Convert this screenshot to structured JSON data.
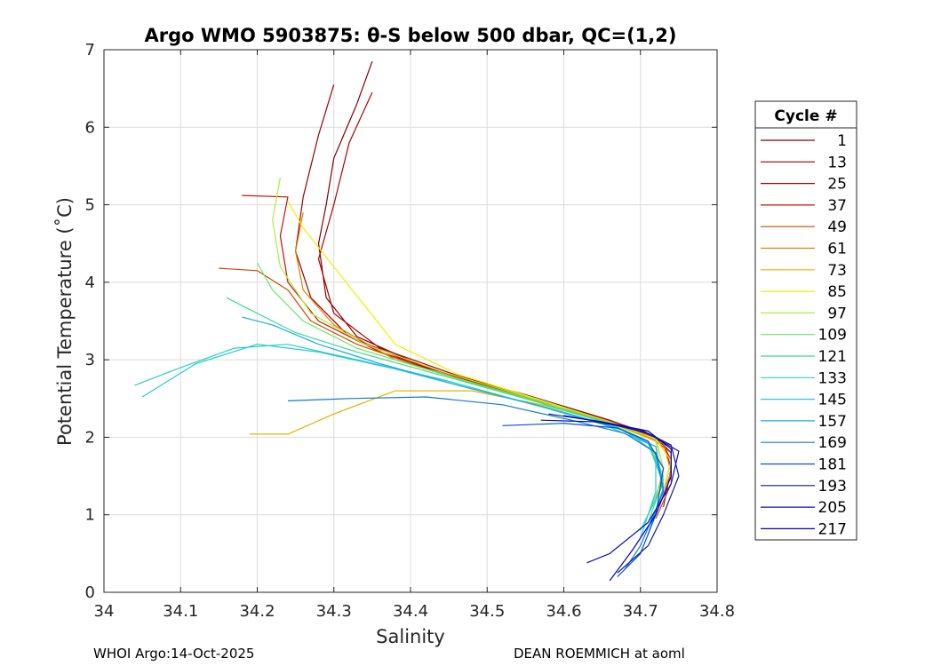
{
  "chart_data": {
    "type": "line",
    "title": "Argo WMO 5903875: θ-S below 500 dbar,  QC=(1,2)",
    "xlabel": "Salinity",
    "ylabel": "Potential Temperature (˚C)",
    "xlim": [
      34.0,
      34.8
    ],
    "ylim": [
      0,
      7
    ],
    "xticks": [
      "34",
      "34.1",
      "34.2",
      "34.3",
      "34.4",
      "34.5",
      "34.6",
      "34.7",
      "34.8"
    ],
    "yticks": [
      "0",
      "1",
      "2",
      "3",
      "4",
      "5",
      "6",
      "7"
    ],
    "grid": true,
    "legend": {
      "title": "Cycle #",
      "position": "right",
      "entries": [
        "1",
        "13",
        "25",
        "37",
        "49",
        "61",
        "73",
        "85",
        "97",
        "109",
        "121",
        "133",
        "145",
        "157",
        "169",
        "181",
        "193",
        "205",
        "217"
      ],
      "colors": [
        "#800000",
        "#9b0000",
        "#b00000",
        "#c81400",
        "#d24600",
        "#dc8200",
        "#e6b400",
        "#f0f000",
        "#aaf03c",
        "#64e664",
        "#3cdc8c",
        "#28d2b4",
        "#28c8dc",
        "#1eaae6",
        "#1478dc",
        "#0a50d2",
        "#0a1e96",
        "#0a14b4",
        "#0000c8"
      ]
    },
    "series_note": "Each cycle is one theta-S profile from about 500 dbar downward; warm fresh end near salinity 34.2-34.35 at 3-6.8 C converging to a tight tail around salinity 34.72-34.75 at 0.2-2 C.",
    "series": [
      {
        "name": "1",
        "points": [
          [
            34.35,
            6.85
          ],
          [
            34.33,
            6.3
          ],
          [
            34.3,
            5.6
          ],
          [
            34.29,
            5.0
          ],
          [
            34.28,
            4.5
          ],
          [
            34.29,
            3.8
          ],
          [
            34.33,
            3.3
          ],
          [
            34.42,
            2.9
          ],
          [
            34.55,
            2.55
          ],
          [
            34.65,
            2.25
          ],
          [
            34.71,
            2.05
          ],
          [
            34.73,
            1.9
          ],
          [
            34.74,
            1.7
          ]
        ]
      },
      {
        "name": "13",
        "points": [
          [
            34.3,
            6.55
          ],
          [
            34.28,
            5.9
          ],
          [
            34.26,
            5.1
          ],
          [
            34.25,
            4.4
          ],
          [
            34.27,
            3.8
          ],
          [
            34.32,
            3.3
          ],
          [
            34.43,
            2.85
          ],
          [
            34.56,
            2.5
          ],
          [
            34.66,
            2.22
          ],
          [
            34.72,
            2.0
          ],
          [
            34.74,
            1.8
          ],
          [
            34.74,
            1.5
          ]
        ]
      },
      {
        "name": "25",
        "points": [
          [
            34.35,
            6.45
          ],
          [
            34.32,
            5.8
          ],
          [
            34.3,
            5.0
          ],
          [
            34.28,
            4.3
          ],
          [
            34.3,
            3.6
          ],
          [
            34.36,
            3.15
          ],
          [
            34.46,
            2.8
          ],
          [
            34.58,
            2.45
          ],
          [
            34.67,
            2.18
          ],
          [
            34.72,
            1.98
          ],
          [
            34.74,
            1.7
          ],
          [
            34.73,
            1.3
          ]
        ]
      },
      {
        "name": "37",
        "points": [
          [
            34.18,
            5.12
          ],
          [
            34.24,
            5.1
          ],
          [
            34.23,
            4.6
          ],
          [
            34.24,
            4.0
          ],
          [
            34.28,
            3.5
          ],
          [
            34.36,
            3.1
          ],
          [
            34.47,
            2.75
          ],
          [
            34.59,
            2.42
          ],
          [
            34.68,
            2.15
          ],
          [
            34.73,
            1.95
          ],
          [
            34.74,
            1.6
          ],
          [
            34.73,
            1.1
          ]
        ]
      },
      {
        "name": "49",
        "points": [
          [
            34.15,
            4.18
          ],
          [
            34.2,
            4.15
          ],
          [
            34.24,
            3.9
          ],
          [
            34.27,
            3.5
          ],
          [
            34.33,
            3.2
          ],
          [
            34.43,
            2.85
          ],
          [
            34.55,
            2.5
          ],
          [
            34.65,
            2.22
          ],
          [
            34.71,
            2.02
          ],
          [
            34.74,
            1.8
          ],
          [
            34.74,
            1.4
          ],
          [
            34.72,
            0.95
          ]
        ]
      },
      {
        "name": "61",
        "points": [
          [
            34.26,
            4.9
          ],
          [
            34.25,
            4.4
          ],
          [
            34.26,
            3.9
          ],
          [
            34.3,
            3.45
          ],
          [
            34.38,
            3.0
          ],
          [
            34.49,
            2.68
          ],
          [
            34.6,
            2.38
          ],
          [
            34.68,
            2.12
          ],
          [
            34.73,
            1.92
          ],
          [
            34.74,
            1.55
          ],
          [
            34.72,
            1.05
          ]
        ]
      },
      {
        "name": "73",
        "points": [
          [
            34.19,
            2.04
          ],
          [
            34.24,
            2.04
          ],
          [
            34.3,
            2.3
          ],
          [
            34.38,
            2.6
          ],
          [
            34.48,
            2.6
          ],
          [
            34.58,
            2.4
          ],
          [
            34.67,
            2.15
          ],
          [
            34.72,
            1.95
          ],
          [
            34.73,
            1.6
          ],
          [
            34.72,
            1.2
          ]
        ]
      },
      {
        "name": "85",
        "points": [
          [
            34.24,
            5.05
          ],
          [
            34.26,
            4.7
          ],
          [
            34.3,
            4.2
          ],
          [
            34.34,
            3.7
          ],
          [
            34.38,
            3.2
          ],
          [
            34.46,
            2.82
          ],
          [
            34.57,
            2.48
          ],
          [
            34.66,
            2.2
          ],
          [
            34.72,
            1.98
          ],
          [
            34.74,
            1.7
          ],
          [
            34.73,
            1.3
          ]
        ]
      },
      {
        "name": "97",
        "points": [
          [
            34.23,
            5.35
          ],
          [
            34.22,
            4.8
          ],
          [
            34.23,
            4.2
          ],
          [
            34.27,
            3.6
          ],
          [
            34.34,
            3.2
          ],
          [
            34.44,
            2.85
          ],
          [
            34.56,
            2.5
          ],
          [
            34.66,
            2.2
          ],
          [
            34.72,
            1.98
          ],
          [
            34.73,
            1.6
          ]
        ]
      },
      {
        "name": "109",
        "points": [
          [
            34.2,
            4.25
          ],
          [
            34.22,
            3.9
          ],
          [
            34.26,
            3.5
          ],
          [
            34.33,
            3.15
          ],
          [
            34.44,
            2.82
          ],
          [
            34.56,
            2.48
          ],
          [
            34.66,
            2.18
          ],
          [
            34.71,
            1.95
          ],
          [
            34.73,
            1.5
          ],
          [
            34.71,
            1.0
          ]
        ]
      },
      {
        "name": "121",
        "points": [
          [
            34.16,
            3.8
          ],
          [
            34.2,
            3.6
          ],
          [
            34.25,
            3.35
          ],
          [
            34.33,
            3.1
          ],
          [
            34.44,
            2.8
          ],
          [
            34.56,
            2.47
          ],
          [
            34.66,
            2.17
          ],
          [
            34.71,
            1.93
          ],
          [
            34.73,
            1.45
          ],
          [
            34.71,
            0.9
          ]
        ]
      },
      {
        "name": "133",
        "points": [
          [
            34.04,
            2.67
          ],
          [
            34.1,
            2.9
          ],
          [
            34.17,
            3.15
          ],
          [
            34.24,
            3.2
          ],
          [
            34.33,
            3.0
          ],
          [
            34.44,
            2.75
          ],
          [
            34.55,
            2.45
          ],
          [
            34.65,
            2.17
          ],
          [
            34.71,
            1.92
          ],
          [
            34.73,
            1.4
          ],
          [
            34.7,
            0.8
          ]
        ]
      },
      {
        "name": "145",
        "points": [
          [
            34.05,
            2.52
          ],
          [
            34.12,
            2.95
          ],
          [
            34.2,
            3.2
          ],
          [
            34.28,
            3.1
          ],
          [
            34.38,
            2.88
          ],
          [
            34.49,
            2.6
          ],
          [
            34.6,
            2.32
          ],
          [
            34.68,
            2.08
          ],
          [
            34.72,
            1.8
          ],
          [
            34.72,
            1.3
          ],
          [
            34.7,
            0.7
          ]
        ]
      },
      {
        "name": "157",
        "points": [
          [
            34.18,
            3.55
          ],
          [
            34.22,
            3.45
          ],
          [
            34.28,
            3.2
          ],
          [
            34.36,
            2.95
          ],
          [
            34.47,
            2.65
          ],
          [
            34.58,
            2.38
          ],
          [
            34.67,
            2.12
          ],
          [
            34.72,
            1.88
          ],
          [
            34.73,
            1.35
          ],
          [
            34.71,
            0.75
          ]
        ]
      },
      {
        "name": "169",
        "points": [
          [
            34.24,
            2.47
          ],
          [
            34.32,
            2.5
          ],
          [
            34.42,
            2.52
          ],
          [
            34.52,
            2.42
          ],
          [
            34.61,
            2.22
          ],
          [
            34.68,
            2.05
          ],
          [
            34.72,
            1.8
          ],
          [
            34.73,
            1.3
          ],
          [
            34.7,
            0.6
          ],
          [
            34.68,
            0.3
          ]
        ]
      },
      {
        "name": "181",
        "points": [
          [
            34.52,
            2.15
          ],
          [
            34.6,
            2.18
          ],
          [
            34.67,
            2.12
          ],
          [
            34.71,
            1.95
          ],
          [
            34.73,
            1.6
          ],
          [
            34.72,
            1.0
          ],
          [
            34.7,
            0.5
          ],
          [
            34.67,
            0.2
          ]
        ]
      },
      {
        "name": "193",
        "points": [
          [
            34.57,
            2.22
          ],
          [
            34.64,
            2.2
          ],
          [
            34.7,
            2.1
          ],
          [
            34.74,
            1.9
          ],
          [
            34.75,
            1.5
          ],
          [
            34.73,
            1.0
          ],
          [
            34.71,
            0.6
          ],
          [
            34.67,
            0.25
          ]
        ]
      },
      {
        "name": "205",
        "points": [
          [
            34.58,
            2.3
          ],
          [
            34.65,
            2.2
          ],
          [
            34.71,
            2.05
          ],
          [
            34.75,
            1.82
          ],
          [
            34.74,
            1.4
          ],
          [
            34.71,
            0.9
          ],
          [
            34.66,
            0.5
          ],
          [
            34.63,
            0.38
          ]
        ]
      },
      {
        "name": "217",
        "points": [
          [
            34.6,
            2.28
          ],
          [
            34.66,
            2.18
          ],
          [
            34.71,
            2.08
          ],
          [
            34.74,
            1.85
          ],
          [
            34.74,
            1.5
          ],
          [
            34.72,
            1.0
          ],
          [
            34.69,
            0.55
          ],
          [
            34.66,
            0.15
          ]
        ]
      }
    ]
  },
  "footer": {
    "left": "WHOI Argo:14-Oct-2025",
    "right": "DEAN ROEMMICH at aoml"
  }
}
